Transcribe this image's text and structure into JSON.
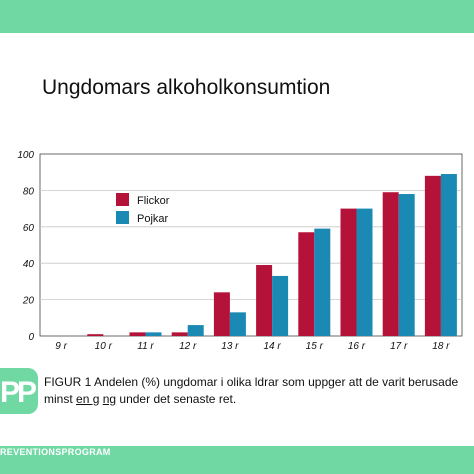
{
  "header": {
    "title": "Ungdomars alkoholkonsumtion"
  },
  "branding": {
    "logo_text": "PP",
    "program_text": "REVENTIONSPROGRAM",
    "band_color": "#6fd8a3"
  },
  "caption": {
    "line1": "FIGUR 1  Andelen (%) ungdomar i olika   ldrar som uppger att de varit berusade",
    "line2_part1": "minst ",
    "line2_underlined1": "en g",
    "line2_part2": " ",
    "line2_underlined2": "ng",
    "line2_part3": " under det senaste    ret."
  },
  "chart_data": {
    "type": "bar",
    "title": "Ungdomars alkoholkonsumtion",
    "xlabel": "",
    "ylabel": "",
    "ylim": [
      0,
      100
    ],
    "yticks": [
      "0",
      "20",
      "40",
      "60",
      "80",
      "100"
    ],
    "categories": [
      "9   r",
      "10   r",
      "11   r",
      "12   r",
      "13   r",
      "14   r",
      "15   r",
      "16   r",
      "17   r",
      "18   r"
    ],
    "series": [
      {
        "name": "Flickor",
        "color": "#b5123a",
        "values": [
          0,
          1,
          2,
          2,
          24,
          39,
          57,
          70,
          79,
          88
        ]
      },
      {
        "name": "Pojkar",
        "color": "#1a8ab5",
        "values": [
          0,
          0,
          2,
          6,
          13,
          33,
          59,
          70,
          78,
          89
        ]
      }
    ],
    "grid": true,
    "legend": "upper-left"
  }
}
